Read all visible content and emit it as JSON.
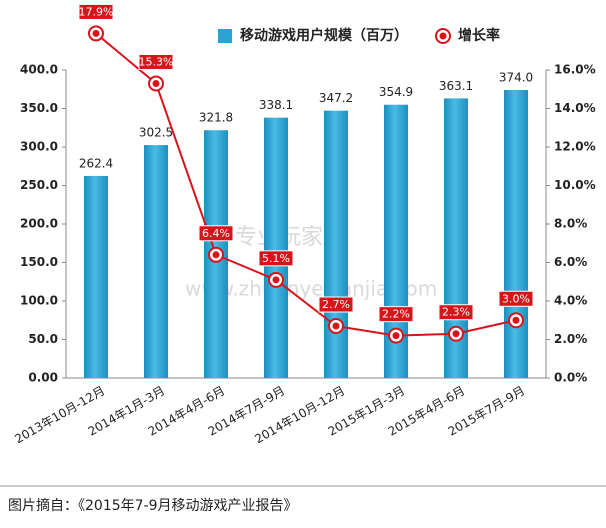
{
  "chart_data": {
    "type": "bar",
    "categories": [
      "2013年10月-12月",
      "2014年1月-3月",
      "2014年4月-6月",
      "2014年7月-9月",
      "2014年10月-12月",
      "2015年1月-3月",
      "2015年4月-6月",
      "2015年7月-9月"
    ],
    "series": [
      {
        "name": "移动游戏用户规模（百万）",
        "type": "bar",
        "color": "#2aa4d5",
        "values": [
          262.4,
          302.5,
          321.8,
          338.1,
          347.2,
          354.9,
          363.1,
          374.0
        ],
        "value_labels": [
          "262.4",
          "302.5",
          "321.8",
          "338.1",
          "347.2",
          "354.9",
          "363.1",
          "374.0"
        ]
      },
      {
        "name": "增长率",
        "type": "line",
        "axis": "y2",
        "color": "#d7141a",
        "values": [
          17.9,
          15.3,
          6.4,
          5.1,
          2.7,
          2.2,
          2.3,
          3.0
        ],
        "value_labels": [
          "17.9%",
          "15.3%",
          "6.4%",
          "5.1%",
          "2.7%",
          "2.2%",
          "2.3%",
          "3.0%"
        ]
      }
    ],
    "ylim": [
      0,
      400
    ],
    "yticks": [
      {
        "value": 0,
        "label": "0.00"
      },
      {
        "value": 50,
        "label": "50.0"
      },
      {
        "value": 100,
        "label": "100.0"
      },
      {
        "value": 150,
        "label": "150.0"
      },
      {
        "value": 200,
        "label": "200.0"
      },
      {
        "value": 250,
        "label": "250.0"
      },
      {
        "value": 300,
        "label": "300.0"
      },
      {
        "value": 350,
        "label": "350.0"
      },
      {
        "value": 400,
        "label": "400.0"
      }
    ],
    "y2lim": [
      0,
      16
    ],
    "y2ticks": [
      {
        "value": 0,
        "label": "0.0%"
      },
      {
        "value": 2,
        "label": "2.0%"
      },
      {
        "value": 4,
        "label": "4.0%"
      },
      {
        "value": 6,
        "label": "6.0%"
      },
      {
        "value": 8,
        "label": "8.0%"
      },
      {
        "value": 10,
        "label": "10.0%"
      },
      {
        "value": 12,
        "label": "12.0%"
      },
      {
        "value": 14,
        "label": "14.0%"
      },
      {
        "value": 16,
        "label": "16.0%"
      }
    ],
    "legend": "top"
  },
  "watermark": {
    "brand": "专业玩家",
    "url": "www.zhuanyewanjia.com"
  },
  "footer": {
    "source": "图片摘自：《2015年7-9月移动游戏产业报告》"
  }
}
